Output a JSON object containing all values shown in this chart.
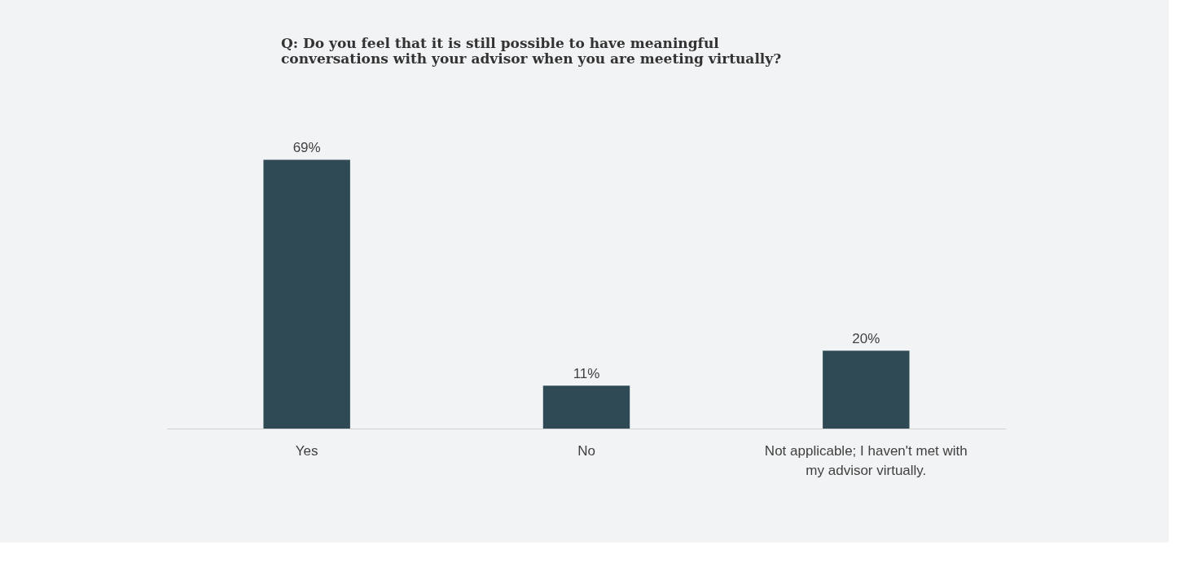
{
  "chart_data": {
    "type": "bar",
    "title": "Q: Do you feel that it is still possible to have meaningful\nconversations with your advisor when you are meeting virtually?",
    "categories": [
      "Yes",
      "No",
      "Not applicable; I haven't met with my advisor virtually."
    ],
    "values": [
      69,
      11,
      20
    ],
    "value_labels": [
      "69%",
      "11%",
      "20%"
    ],
    "color": "#2f4a54"
  }
}
